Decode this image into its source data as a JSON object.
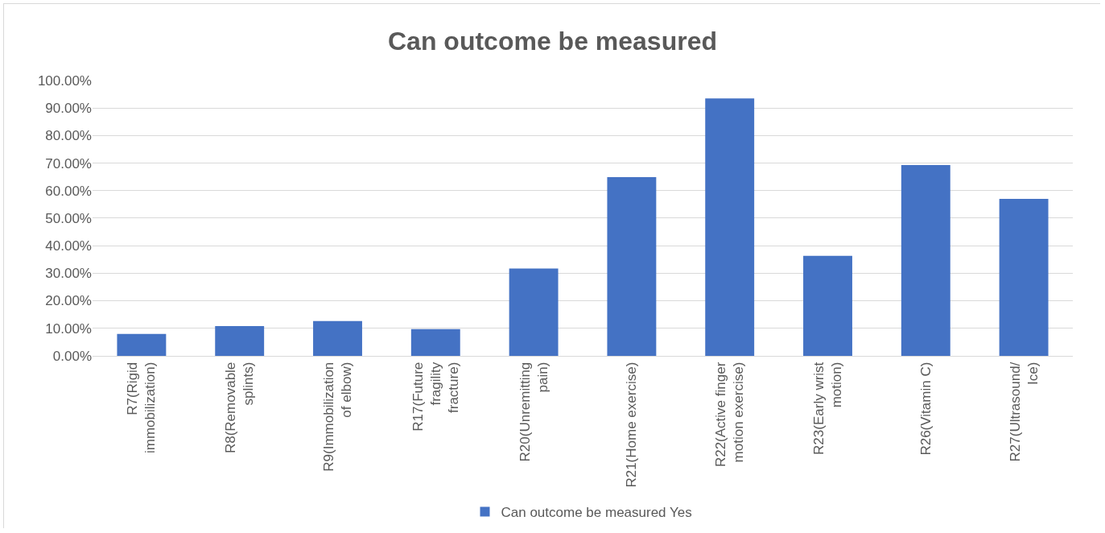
{
  "chart_data": {
    "type": "bar",
    "title": "Can outcome be measured",
    "categories": [
      "R7(Rigid immobilization)",
      "R8(Removable splints)",
      "R9(Immobilization of elbow)",
      "R17(Future fragility fracture)",
      "R20(Unremitting pain)",
      "R21(Home exercise)",
      "R22(Active finger motion exercise)",
      "R23(Early wrist motion)",
      "R26(Vitamin C)",
      "R27(Ultrasound/ Ice)"
    ],
    "series": [
      {
        "name": "Can outcome be measured Yes",
        "color": "#4472c4",
        "values": [
          7.9,
          10.8,
          12.6,
          9.7,
          31.7,
          64.9,
          93.5,
          36.3,
          69.3,
          57.0
        ]
      }
    ],
    "ylim": [
      0,
      100
    ],
    "yticks": [
      {
        "value": 0,
        "label": "0.00%"
      },
      {
        "value": 10,
        "label": "10.00%"
      },
      {
        "value": 20,
        "label": "20.00%"
      },
      {
        "value": 30,
        "label": "30.00%"
      },
      {
        "value": 40,
        "label": "40.00%"
      },
      {
        "value": 50,
        "label": "50.00%"
      },
      {
        "value": 60,
        "label": "60.00%"
      },
      {
        "value": 70,
        "label": "70.00%"
      },
      {
        "value": 80,
        "label": "80.00%"
      },
      {
        "value": 90,
        "label": "90.00%"
      },
      {
        "value": 100,
        "label": "100.00%"
      }
    ],
    "grid": "y",
    "legend": "bottom"
  }
}
